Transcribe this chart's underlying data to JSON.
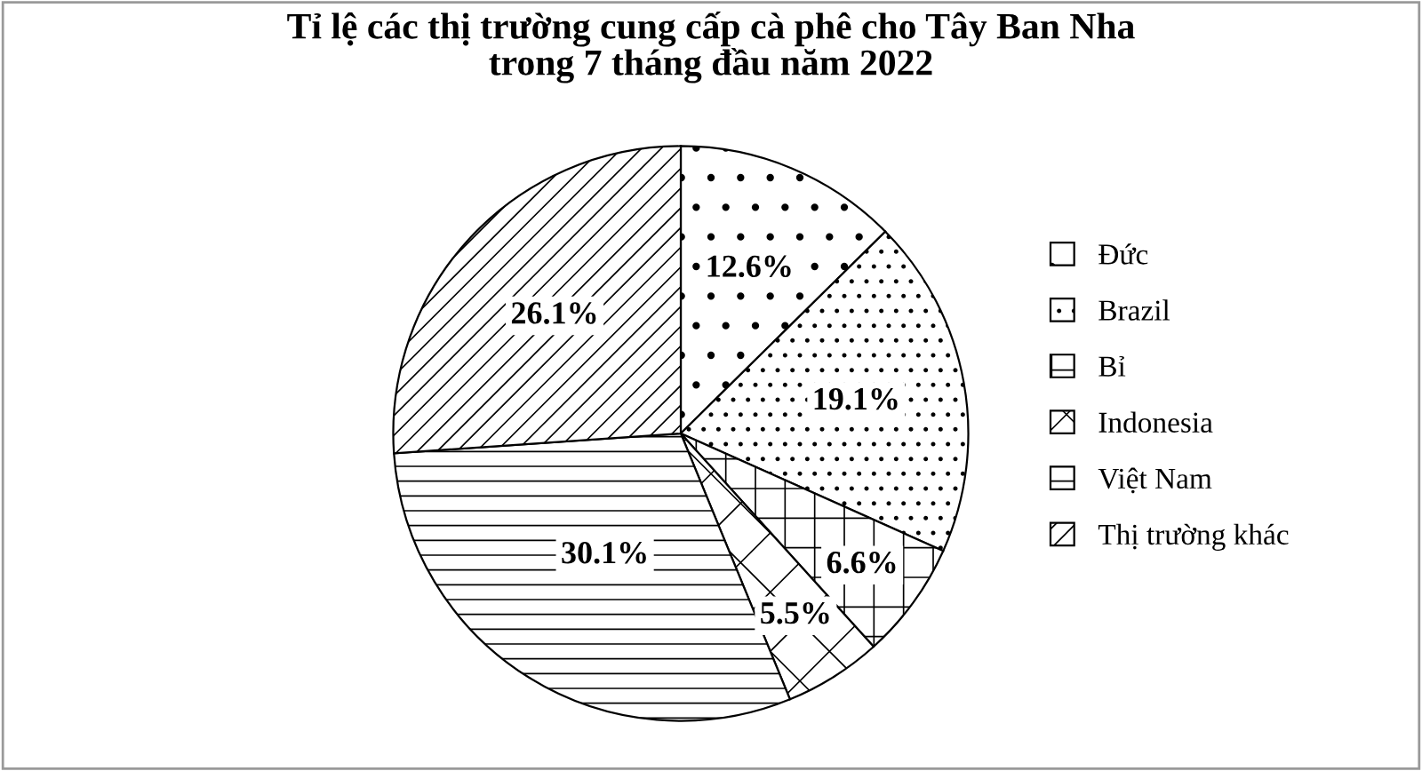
{
  "chart_data": {
    "type": "pie",
    "title": "Tỉ lệ các thị trường cung cấp cà phê cho Tây Ban Nha\ntrong 7 tháng đầu năm 2022",
    "categories": [
      "Đức",
      "Brazil",
      "Bỉ",
      "Indonesia",
      "Việt Nam",
      "Thị trường khác"
    ],
    "values": [
      12.6,
      19.1,
      6.6,
      5.5,
      30.1,
      26.1
    ],
    "value_labels": [
      "12.6%",
      "19.1%",
      "6.6%",
      "5.5%",
      "30.1%",
      "26.1%"
    ],
    "colors": [
      "#000000",
      "#000000",
      "#000000",
      "#000000",
      "#000000",
      "#000000"
    ],
    "legend": "right"
  }
}
